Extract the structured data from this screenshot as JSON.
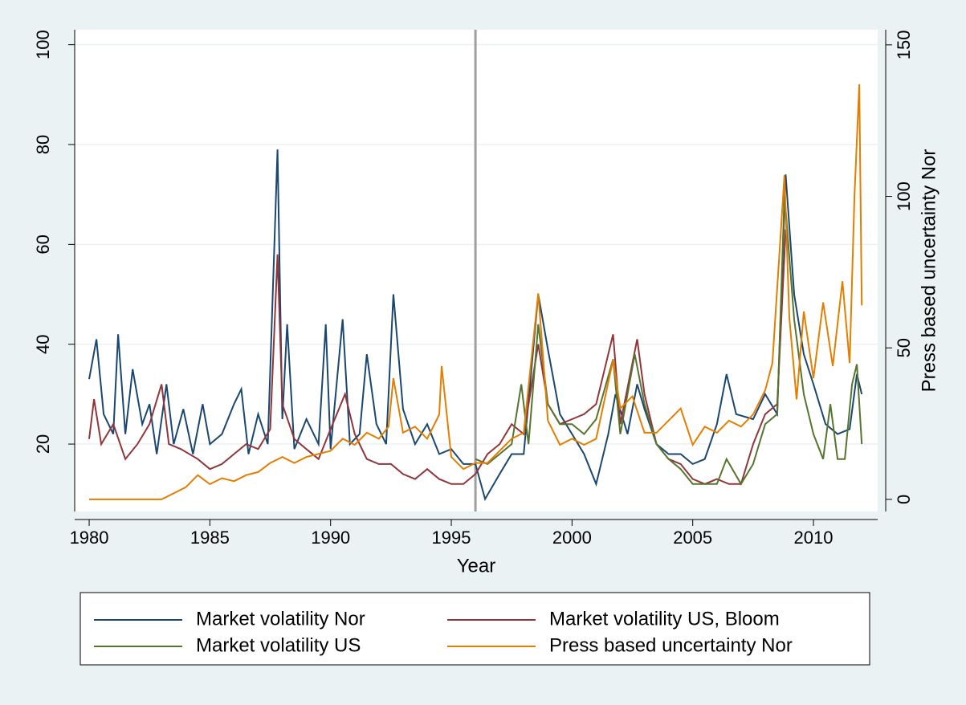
{
  "chart_data": {
    "type": "line",
    "xlabel": "Year",
    "y2label": "Press based uncertainty Nor",
    "xlim": [
      1979.4,
      2012.66
    ],
    "xticks": [
      1980,
      1985,
      1990,
      1995,
      2000,
      2005,
      2010
    ],
    "ylim": [
      6.5,
      103
    ],
    "yticks": [
      20,
      40,
      60,
      80,
      100
    ],
    "y2lim": [
      -4,
      155
    ],
    "y2ticks": [
      0,
      50,
      100,
      150
    ],
    "grid": true,
    "xline": 1996,
    "xline_color": "#a0a0a0",
    "legend": "bottom",
    "series": [
      {
        "name": "Market volatility Nor",
        "color": "#1a476f",
        "axis": "y",
        "x": [
          1980.0,
          1980.3,
          1980.6,
          1981.0,
          1981.2,
          1981.5,
          1981.8,
          1982.2,
          1982.5,
          1982.8,
          1983.2,
          1983.5,
          1983.9,
          1984.3,
          1984.7,
          1985.0,
          1985.5,
          1986.0,
          1986.3,
          1986.6,
          1987.0,
          1987.4,
          1987.8,
          1988.0,
          1988.2,
          1988.5,
          1989.0,
          1989.5,
          1989.8,
          1990.0,
          1990.5,
          1990.8,
          1991.2,
          1991.5,
          1991.9,
          1992.3,
          1992.6,
          1993.0,
          1993.5,
          1994.0,
          1994.5,
          1995.0,
          1995.5,
          1996.0,
          1996.4,
          1997.0,
          1997.5,
          1998.0,
          1998.6,
          1999.0,
          1999.5,
          2000.0,
          2000.5,
          2001.0,
          2001.5,
          2001.8,
          2002.3,
          2002.7,
          2003.0,
          2003.5,
          2004.0,
          2004.5,
          2005.0,
          2005.5,
          2006.0,
          2006.4,
          2006.8,
          2007.5,
          2008.0,
          2008.5,
          2008.85,
          2009.2,
          2009.6,
          2010.0,
          2010.5,
          2011.0,
          2011.5,
          2011.8,
          2012.0
        ],
        "values": [
          33,
          41,
          26,
          22,
          42,
          22,
          35,
          24,
          28,
          18,
          32,
          20,
          27,
          18,
          28,
          20,
          22,
          28,
          31,
          18,
          26,
          20,
          79,
          25,
          44,
          19,
          25,
          20,
          44,
          19,
          45,
          20,
          22,
          38,
          24,
          20,
          50,
          27,
          20,
          24,
          18,
          19,
          16,
          16,
          9,
          14,
          18,
          18,
          50,
          39,
          26,
          22,
          18,
          12,
          22,
          30,
          22,
          32,
          27,
          20,
          18,
          18,
          16,
          17,
          24,
          34,
          26,
          25,
          30,
          26,
          74,
          50,
          38,
          32,
          24,
          22,
          23,
          34,
          30
        ]
      },
      {
        "name": "Market volatility US, Bloom",
        "color": "#90353b",
        "axis": "y",
        "x": [
          1980.0,
          1980.2,
          1980.5,
          1981.0,
          1981.5,
          1982.0,
          1982.5,
          1983.0,
          1983.3,
          1983.8,
          1984.5,
          1985.0,
          1985.5,
          1986.0,
          1986.5,
          1987.0,
          1987.5,
          1987.8,
          1988.0,
          1988.5,
          1989.0,
          1989.5,
          1990.0,
          1990.6,
          1991.0,
          1991.5,
          1992.0,
          1992.5,
          1993.0,
          1993.5,
          1994.0,
          1994.5,
          1995.0,
          1995.5,
          1996.0,
          1996.5,
          1997.0,
          1997.5,
          1998.0,
          1998.6,
          1999.0,
          1999.5,
          2000.0,
          2000.5,
          2001.0,
          2001.7,
          2002.0,
          2002.7,
          2003.0,
          2003.5,
          2004.0,
          2004.5,
          2005.0,
          2005.5,
          2006.0,
          2006.5,
          2007.0,
          2007.5,
          2008.0,
          2008.5,
          2008.85
        ],
        "values": [
          21,
          29,
          20,
          24,
          17,
          20,
          24,
          32,
          20,
          19,
          17,
          15,
          16,
          18,
          20,
          19,
          23,
          58,
          28,
          21,
          19,
          17,
          23,
          30,
          22,
          17,
          16,
          16,
          14,
          13,
          15,
          13,
          12,
          12,
          14,
          18,
          20,
          24,
          22,
          40,
          28,
          24,
          25,
          26,
          28,
          42,
          24,
          41,
          30,
          20,
          17,
          16,
          13,
          12,
          13,
          12,
          12,
          20,
          26,
          28,
          63
        ]
      },
      {
        "name": "Market volatility US",
        "color": "#55752f",
        "axis": "y",
        "x": [
          1996.0,
          1996.5,
          1997.0,
          1997.5,
          1997.9,
          1998.2,
          1998.6,
          1999.0,
          1999.5,
          2000.0,
          2000.5,
          2001.0,
          2001.7,
          2002.0,
          2002.6,
          2003.0,
          2003.5,
          2004.0,
          2004.5,
          2005.0,
          2005.5,
          2006.0,
          2006.4,
          2007.0,
          2007.5,
          2008.0,
          2008.5,
          2008.8,
          2009.2,
          2009.6,
          2010.0,
          2010.4,
          2010.7,
          2011.0,
          2011.3,
          2011.6,
          2011.8,
          2012.0
        ],
        "values": [
          17,
          16,
          18,
          20,
          32,
          20,
          44,
          28,
          24,
          24,
          22,
          25,
          37,
          22,
          38,
          28,
          20,
          17,
          15,
          12,
          12,
          12,
          17,
          12,
          16,
          24,
          26,
          70,
          45,
          30,
          22,
          17,
          28,
          17,
          17,
          32,
          36,
          20
        ]
      },
      {
        "name": "Press based uncertainty Nor",
        "color": "#e37e00",
        "axis": "y2",
        "x": [
          1980.0,
          1981.0,
          1982.0,
          1983.0,
          1983.5,
          1984.0,
          1984.5,
          1985.0,
          1985.5,
          1986.0,
          1986.5,
          1987.0,
          1987.5,
          1988.0,
          1988.5,
          1989.0,
          1989.5,
          1990.0,
          1990.5,
          1991.0,
          1991.5,
          1992.0,
          1992.4,
          1992.6,
          1993.0,
          1993.5,
          1994.0,
          1994.5,
          1994.6,
          1995.0,
          1995.5,
          1996.0,
          1996.5,
          1997.0,
          1997.5,
          1998.0,
          1998.6,
          1999.0,
          1999.5,
          2000.0,
          2000.5,
          2001.0,
          2001.7,
          2002.0,
          2002.5,
          2003.0,
          2003.5,
          2004.0,
          2004.5,
          2005.0,
          2005.5,
          2006.0,
          2006.5,
          2007.0,
          2007.5,
          2008.0,
          2008.3,
          2008.8,
          2009.0,
          2009.3,
          2009.6,
          2010.0,
          2010.4,
          2010.8,
          2011.2,
          2011.5,
          2011.7,
          2011.9,
          2012.0
        ],
        "values": [
          0,
          0,
          0,
          0,
          2,
          4,
          8,
          5,
          7,
          6,
          8,
          9,
          12,
          14,
          12,
          14,
          15,
          16,
          20,
          18,
          22,
          20,
          24,
          40,
          22,
          24,
          20,
          28,
          44,
          14,
          10,
          12,
          12,
          16,
          20,
          22,
          68,
          26,
          18,
          20,
          18,
          20,
          46,
          30,
          34,
          22,
          22,
          26,
          30,
          18,
          24,
          22,
          26,
          24,
          28,
          36,
          45,
          107,
          60,
          33,
          62,
          40,
          65,
          44,
          72,
          45,
          100,
          137,
          64
        ]
      }
    ]
  }
}
